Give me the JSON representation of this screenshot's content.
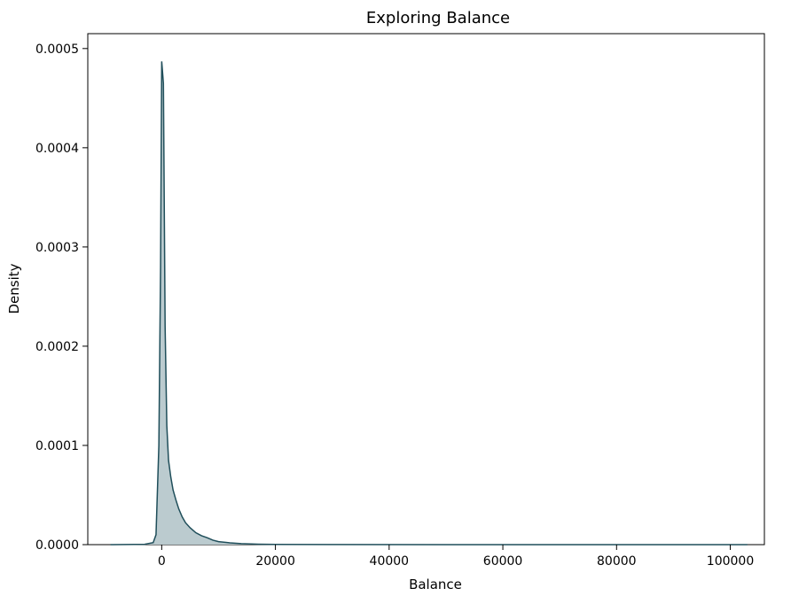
{
  "chart_data": {
    "type": "area",
    "title": "Exploring Balance",
    "xlabel": "Balance",
    "ylabel": "Density",
    "xlim": [
      -13000,
      106000
    ],
    "ylim": [
      0,
      0.000515
    ],
    "x_ticks": [
      0,
      20000,
      40000,
      60000,
      80000,
      100000
    ],
    "x_tick_labels": [
      "0",
      "20000",
      "40000",
      "60000",
      "80000",
      "100000"
    ],
    "y_ticks": [
      0,
      0.0001,
      0.0002,
      0.0003,
      0.0004,
      0.0005
    ],
    "y_tick_labels": [
      "0.0000",
      "0.0001",
      "0.0002",
      "0.0003",
      "0.0004",
      "0.0005"
    ],
    "grid": false,
    "colors": {
      "line": "#1f4e5a",
      "fill": "#b7c8cc"
    },
    "series": [
      {
        "x": [
          -9000,
          -3000,
          -1500,
          -1000,
          -500,
          -200,
          0,
          300,
          600,
          900,
          1200,
          1600,
          2000,
          2500,
          3000,
          3600,
          4200,
          5000,
          6000,
          7000,
          8000,
          9000,
          10000,
          12000,
          14000,
          17000,
          20000,
          30000,
          50000,
          70000,
          90000,
          103000
        ],
        "y": [
          0,
          3e-07,
          2e-06,
          1e-05,
          0.0001,
          0.00028,
          0.000487,
          0.000465,
          0.00022,
          0.00012,
          8.5e-05,
          6.8e-05,
          5.5e-05,
          4.5e-05,
          3.6e-05,
          2.8e-05,
          2.2e-05,
          1.7e-05,
          1.2e-05,
          9e-06,
          7e-06,
          4.5e-06,
          3e-06,
          1.8e-06,
          1e-06,
          5e-07,
          2e-07,
          1e-07,
          5e-08,
          3e-08,
          2e-08,
          1e-08
        ]
      }
    ]
  }
}
